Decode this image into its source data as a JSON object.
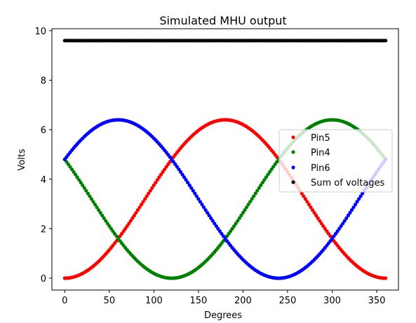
{
  "chart_data": {
    "type": "scatter",
    "title": "Simulated MHU output",
    "xlabel": "Degrees",
    "ylabel": "Volts",
    "xlim": [
      -14.4,
      374.4
    ],
    "ylim": [
      -0.48,
      10.08
    ],
    "xticks": [
      0,
      50,
      100,
      150,
      200,
      250,
      300,
      350
    ],
    "yticks": [
      0,
      2,
      4,
      6,
      8,
      10
    ],
    "x": {
      "start": 0,
      "end": 360,
      "step": 2
    },
    "legend_position": "center-right",
    "grid": false,
    "series": [
      {
        "name": "Pin5",
        "color": "#ff0000",
        "model": {
          "offset": 3.2,
          "amplitude": 3.2,
          "phase_deg": 180
        }
      },
      {
        "name": "Pin4",
        "color": "#008000",
        "model": {
          "offset": 3.2,
          "amplitude": 3.2,
          "phase_deg": 300
        }
      },
      {
        "name": "Pin6",
        "color": "#0000ff",
        "model": {
          "offset": 3.2,
          "amplitude": 3.2,
          "phase_deg": 60
        }
      },
      {
        "name": "Sum of voltages",
        "color": "#000000",
        "model": {
          "offset": 9.6,
          "amplitude": 0,
          "phase_deg": 0
        }
      }
    ]
  }
}
